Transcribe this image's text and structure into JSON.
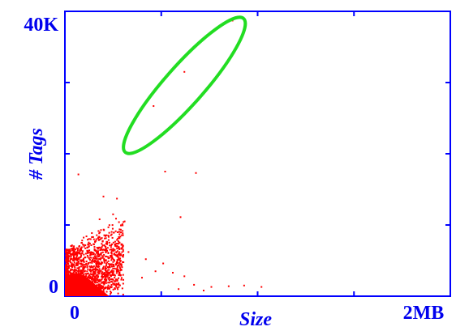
{
  "chart_data": {
    "type": "scatter",
    "title": "",
    "xlabel": "Size",
    "ylabel": "# Tags",
    "xlim": [
      0,
      2000000
    ],
    "ylim": [
      0,
      40000
    ],
    "x_tick_labels": [
      {
        "value": 0,
        "label": "0"
      },
      {
        "value": 2000000,
        "label": "2MB"
      }
    ],
    "y_tick_labels": [
      {
        "value": 0,
        "label": "0"
      },
      {
        "value": 40000,
        "label": "40K"
      }
    ],
    "x_minor_ticks": [
      500000,
      1000000,
      1500000
    ],
    "y_minor_ticks": [
      10000,
      20000,
      30000
    ],
    "grid": false,
    "point_color": "#ff0000",
    "axis_color": "#0000ff",
    "label_color": "#0000ee",
    "annotation": {
      "shape": "ellipse",
      "color": "#22dd22",
      "bounds": {
        "x_min": 290000,
        "x_max": 950000,
        "y_min": 19500,
        "y_max": 39700
      }
    },
    "series": [
      {
        "points": [
          [
            870000,
            38700
          ],
          [
            620000,
            31500
          ],
          [
            460000,
            26700
          ],
          [
            520000,
            17500
          ],
          [
            680000,
            17300
          ],
          [
            70000,
            17100
          ],
          [
            200000,
            14000
          ],
          [
            270000,
            13700
          ],
          [
            600000,
            11100
          ],
          [
            250000,
            11500
          ],
          [
            180000,
            10800
          ],
          [
            310000,
            10500
          ],
          [
            230000,
            8900
          ],
          [
            140000,
            8300
          ],
          [
            270000,
            7900
          ],
          [
            280000,
            6900
          ],
          [
            330000,
            6200
          ],
          [
            420000,
            5200
          ],
          [
            510000,
            4600
          ],
          [
            560000,
            3300
          ],
          [
            470000,
            3500
          ],
          [
            620000,
            2800
          ],
          [
            400000,
            2600
          ],
          [
            670000,
            1600
          ],
          [
            760000,
            1300
          ],
          [
            850000,
            1400
          ],
          [
            930000,
            1500
          ],
          [
            1020000,
            1300
          ],
          [
            720000,
            800
          ],
          [
            590000,
            1000
          ]
        ],
        "dense_cluster": {
          "count": 1600,
          "x_range": [
            0,
            300000
          ],
          "y_range": [
            0,
            11000
          ],
          "note": "dense mass of points near origin"
        }
      }
    ]
  }
}
